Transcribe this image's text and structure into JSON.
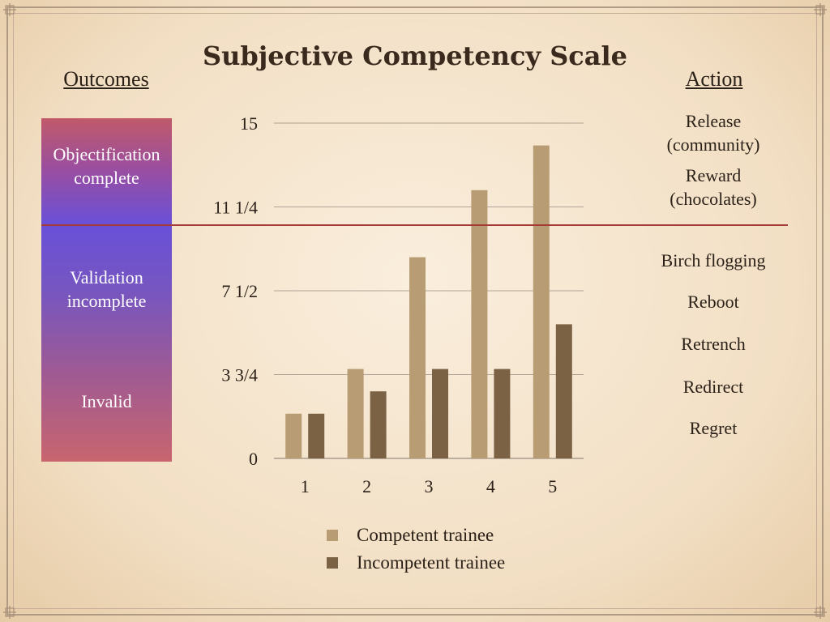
{
  "title": "Subjective Competency Scale",
  "outcomes": {
    "header": "Outcomes",
    "labels": [
      [
        "Objectification",
        "complete"
      ],
      [
        "Validation",
        "incomplete"
      ],
      [
        "Invalid"
      ]
    ]
  },
  "actions": {
    "header": "Action",
    "labels": [
      [
        "Release",
        "(community)"
      ],
      [
        "Reward",
        "(chocolates)"
      ],
      [
        "Birch flogging"
      ],
      [
        "Reboot"
      ],
      [
        "Retrench"
      ],
      [
        "Redirect"
      ],
      [
        "Regret"
      ]
    ]
  },
  "colors": {
    "competent": "#b89c74",
    "incompetent": "#7b6245",
    "threshold_line": "#a43a36",
    "gridline": "#9a8d80"
  },
  "chart_data": {
    "type": "bar",
    "categories": [
      "1",
      "2",
      "3",
      "4",
      "5"
    ],
    "series": [
      {
        "name": "Competent trainee",
        "values": [
          2,
          4,
          9,
          12,
          14
        ]
      },
      {
        "name": "Incompetent trainee",
        "values": [
          2,
          3,
          4,
          4,
          6
        ]
      }
    ],
    "ylim": [
      0,
      15
    ],
    "yticks": [
      {
        "value": 0,
        "label": "0"
      },
      {
        "value": 3.75,
        "label": "3 3/4"
      },
      {
        "value": 7.5,
        "label": "7 1/2"
      },
      {
        "value": 11.25,
        "label": "11 1/4"
      },
      {
        "value": 15,
        "label": "15"
      }
    ],
    "threshold": 10.5,
    "grid": true,
    "legend_position": "bottom"
  }
}
